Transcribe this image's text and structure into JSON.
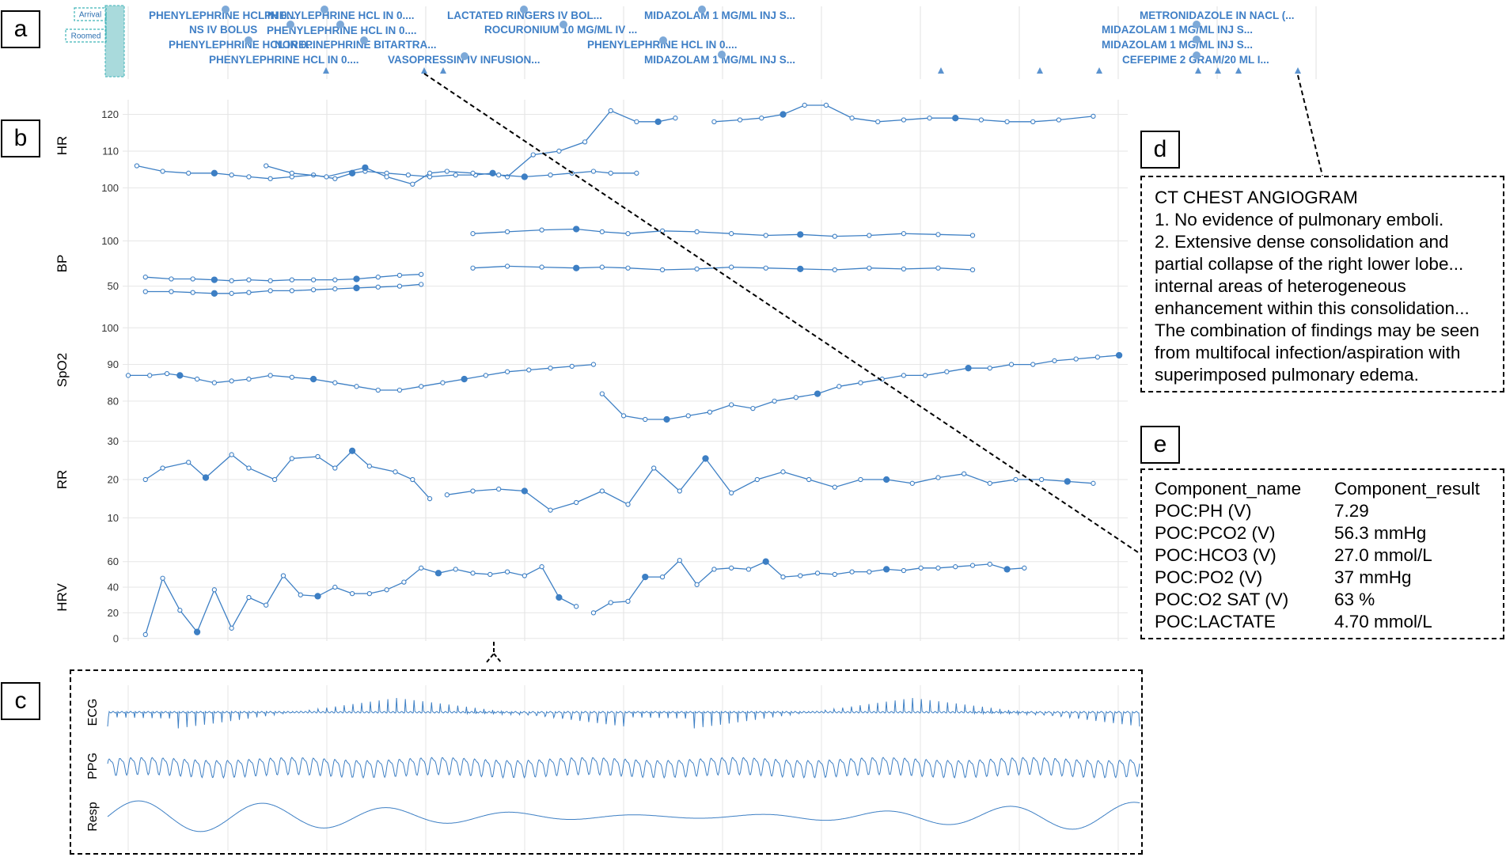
{
  "panels": [
    "a",
    "b",
    "c",
    "d",
    "e"
  ],
  "colors": {
    "blue": "#3d7fc4",
    "med": "#3f7fc6",
    "grid": "#e6e6e6",
    "band": "#a9dadc",
    "bandEdge": "#3fb3b8"
  },
  "timeline": {
    "events": [
      "Arrival",
      "Roomed"
    ],
    "medications": [
      "PHENYLEPHRINE HCL IN 0....",
      "NS IV BOLUS",
      "PHENYLEPHRINE HCL IN 0....",
      "PHENYLEPHRINE HCL IN 0....",
      "PHENYLEPHRINE HCL IN 0....",
      "PHENYLEPHRINE HCL IN 0....",
      "NOREPINEPHRINE BITARTRA...",
      "VASOPRESSIN IV INFUSION...",
      "LACTATED RINGERS IV BOL...",
      "ROCURONIUM 10 MG/ML IV ...",
      "PHENYLEPHRINE HCL IN 0....",
      "MIDAZOLAM 1 MG/ML INJ S...",
      "MIDAZOLAM 1 MG/ML INJ S...",
      "METRONIDAZOLE IN NACL (...",
      "MIDAZOLAM 1 MG/ML INJ S...",
      "MIDAZOLAM 1 MG/ML INJ S...",
      "CEFEPIME 2 GRAM/20 ML I..."
    ]
  },
  "chart_data": [
    {
      "type": "line",
      "ylabel": "HR",
      "ylim": [
        99,
        124
      ],
      "yticks": [
        "100",
        "110",
        "120"
      ],
      "series": [
        {
          "x": [
            1,
            4,
            7,
            10,
            12,
            14,
            16.5,
            19,
            21.5,
            24,
            26,
            27.5,
            30,
            32.5,
            35,
            38,
            40.3,
            42.3,
            44,
            47,
            50,
            53,
            56,
            59,
            61.5,
            63.5
          ],
          "y": [
            106,
            104.5,
            104,
            104,
            103.5,
            103,
            102.5,
            103,
            103.5,
            102.5,
            104,
            104.5,
            104,
            103.5,
            103,
            103.5,
            103.5,
            104,
            103,
            109,
            110,
            112.5,
            121,
            118,
            118,
            119
          ],
          "g": "a"
        },
        {
          "x": [
            68,
            71,
            73.5,
            76,
            78.5,
            81,
            84,
            87,
            90,
            93,
            96,
            99,
            102,
            105,
            108,
            112
          ],
          "y": [
            118,
            118.5,
            119,
            120,
            122.5,
            122.5,
            119,
            118,
            118.5,
            119,
            119,
            118.5,
            118,
            118,
            118.5,
            119.5
          ],
          "g": "b"
        },
        {
          "x": [
            16,
            19,
            23,
            27.5,
            30,
            33,
            35,
            37,
            40,
            43,
            46,
            49,
            51.5,
            54,
            56,
            59
          ],
          "y": [
            106,
            104,
            103,
            105.5,
            103,
            101,
            104,
            104.5,
            104,
            103.5,
            103,
            103.5,
            104,
            104.5,
            104,
            104
          ],
          "g": "c"
        }
      ]
    },
    {
      "type": "line",
      "ylabel": "BP",
      "ylim": [
        20,
        130
      ],
      "yticks": [
        "50",
        "100"
      ],
      "series": [
        {
          "x": [
            2,
            5,
            7.5,
            10,
            12,
            14,
            16.5,
            19,
            21.5,
            24,
            26.5,
            29,
            31.5,
            34
          ],
          "y": [
            60,
            58,
            58,
            57,
            56,
            57,
            56,
            57,
            57,
            57,
            58,
            60,
            62,
            63
          ],
          "g": "a"
        },
        {
          "x": [
            2,
            5,
            7.5,
            10,
            12,
            14,
            16.5,
            19,
            21.5,
            24,
            26.5,
            29,
            31.5,
            34
          ],
          "y": [
            44,
            44,
            43,
            42,
            42,
            43,
            45,
            45,
            46,
            47,
            48,
            49,
            50,
            52
          ],
          "g": "b"
        },
        {
          "x": [
            40,
            44,
            48,
            52,
            55,
            58,
            62,
            66,
            70,
            74,
            78,
            82,
            86,
            90,
            94,
            98
          ],
          "y": [
            108,
            110,
            112,
            113,
            110,
            108,
            111,
            110,
            108,
            106,
            107,
            105,
            106,
            108,
            107,
            106
          ],
          "g": "c"
        },
        {
          "x": [
            40,
            44,
            48,
            52,
            55,
            58,
            62,
            66,
            70,
            74,
            78,
            82,
            86,
            90,
            94,
            98
          ],
          "y": [
            70,
            72,
            71,
            70,
            71,
            70,
            68,
            69,
            71,
            70,
            69,
            68,
            70,
            69,
            70,
            68
          ],
          "g": "d"
        }
      ]
    },
    {
      "type": "line",
      "ylabel": "SpO2",
      "ylim": [
        75,
        102
      ],
      "yticks": [
        "80",
        "90",
        "100"
      ],
      "series": [
        {
          "x": [
            0,
            2.5,
            4.5,
            6,
            8,
            10,
            12,
            14,
            16.5,
            19,
            21.5,
            24,
            26.5,
            29,
            31.5,
            34,
            36.5,
            39,
            41.5,
            44,
            46.5,
            49,
            51.5,
            54
          ],
          "y": [
            87,
            87,
            87.5,
            87,
            86,
            85,
            85.5,
            86,
            87,
            86.5,
            86,
            85,
            84,
            83,
            83,
            84,
            85,
            86,
            87,
            88,
            88.5,
            89,
            89.5,
            90
          ],
          "g": "a"
        },
        {
          "x": [
            55,
            57.5,
            60,
            62.5,
            65,
            67.5,
            70,
            72.5,
            75,
            77.5,
            80,
            82.5,
            85,
            87.5,
            90,
            92.5,
            95,
            97.5,
            100,
            102.5,
            105,
            107.5,
            110,
            112.5,
            115
          ],
          "y": [
            82,
            76,
            75,
            75,
            76,
            77,
            79,
            78,
            80,
            81,
            82,
            84,
            85,
            86,
            87,
            87,
            88,
            89,
            89,
            90,
            90,
            91,
            91.5,
            92,
            92.5
          ],
          "g": "b"
        }
      ]
    },
    {
      "type": "line",
      "ylabel": "RR",
      "ylim": [
        8,
        32
      ],
      "yticks": [
        "10",
        "20",
        "30"
      ],
      "series": [
        {
          "x": [
            2,
            4,
            7,
            9,
            12,
            14,
            17,
            19,
            22,
            24,
            26,
            28,
            31,
            33,
            35
          ],
          "y": [
            20,
            23,
            24.5,
            20.5,
            26.5,
            23,
            20,
            25.5,
            26,
            23,
            27.5,
            23.5,
            22,
            20,
            15
          ],
          "g": "a"
        },
        {
          "x": [
            37,
            40,
            43,
            46,
            49,
            52,
            55,
            58,
            61,
            64,
            67,
            70,
            73,
            76,
            79,
            82,
            85,
            88,
            91,
            94,
            97,
            100,
            103,
            106,
            109,
            112
          ],
          "y": [
            16,
            17,
            17.5,
            17,
            12,
            14,
            17,
            13.5,
            23,
            17,
            25.5,
            16.5,
            20,
            22,
            20,
            18,
            20,
            20,
            19,
            20.5,
            21.5,
            19,
            20,
            20,
            19.5,
            19
          ],
          "g": "b"
        }
      ]
    },
    {
      "type": "line",
      "ylabel": "HRV",
      "ylim": [
        -2,
        66
      ],
      "yticks": [
        "0",
        "20",
        "40",
        "60"
      ],
      "series": [
        {
          "x": [
            2,
            4,
            6,
            8,
            10,
            12,
            14,
            16,
            18,
            20,
            22,
            24,
            26,
            28,
            30,
            32,
            34,
            36,
            38,
            40,
            42,
            44,
            46,
            48,
            50,
            52
          ],
          "y": [
            3,
            47,
            22,
            5,
            38,
            8,
            32,
            26,
            49,
            34,
            33,
            40,
            35,
            35,
            38,
            44,
            55,
            51,
            54,
            51,
            50,
            52,
            49,
            56,
            32,
            25
          ],
          "g": "a"
        },
        {
          "x": [
            54,
            56,
            58,
            60,
            62,
            64,
            66,
            68,
            70,
            72,
            74,
            76,
            78,
            80,
            82,
            84,
            86,
            88,
            90,
            92,
            94,
            96,
            98,
            100,
            102,
            104
          ],
          "y": [
            20,
            28,
            29,
            48,
            48,
            61,
            42,
            54,
            55,
            54,
            60,
            48,
            49,
            51,
            50,
            52,
            52,
            54,
            53,
            55,
            55,
            56,
            57,
            58,
            54,
            55
          ],
          "g": "b"
        }
      ]
    },
    {
      "type": "line",
      "ylabel": "ECG"
    },
    {
      "type": "line",
      "ylabel": "PPG"
    },
    {
      "type": "line",
      "ylabel": "Resp"
    }
  ],
  "report": {
    "title": "CT CHEST ANGIOGRAM",
    "lines": [
      "1. No evidence of pulmonary emboli.",
      "2. Extensive dense consolidation and",
      "partial collapse of the right lower lobe...",
      "internal areas of heterogeneous",
      "enhancement within this consolidation...",
      "The combination of findings may be seen",
      "from multifocal infection/aspiration with",
      "superimposed pulmonary edema."
    ]
  },
  "labs": {
    "headers": [
      "Component_name",
      "Component_result"
    ],
    "rows": [
      [
        "POC:PH (V)",
        "7.29"
      ],
      [
        "POC:PCO2 (V)",
        "56.3 mmHg"
      ],
      [
        "POC:HCO3 (V)",
        "27.0 mmol/L"
      ],
      [
        "POC:PO2 (V)",
        "37 mmHg"
      ],
      [
        "POC:O2 SAT (V)",
        "63 %"
      ],
      [
        "POC:LACTATE",
        "4.70 mmol/L"
      ]
    ]
  }
}
